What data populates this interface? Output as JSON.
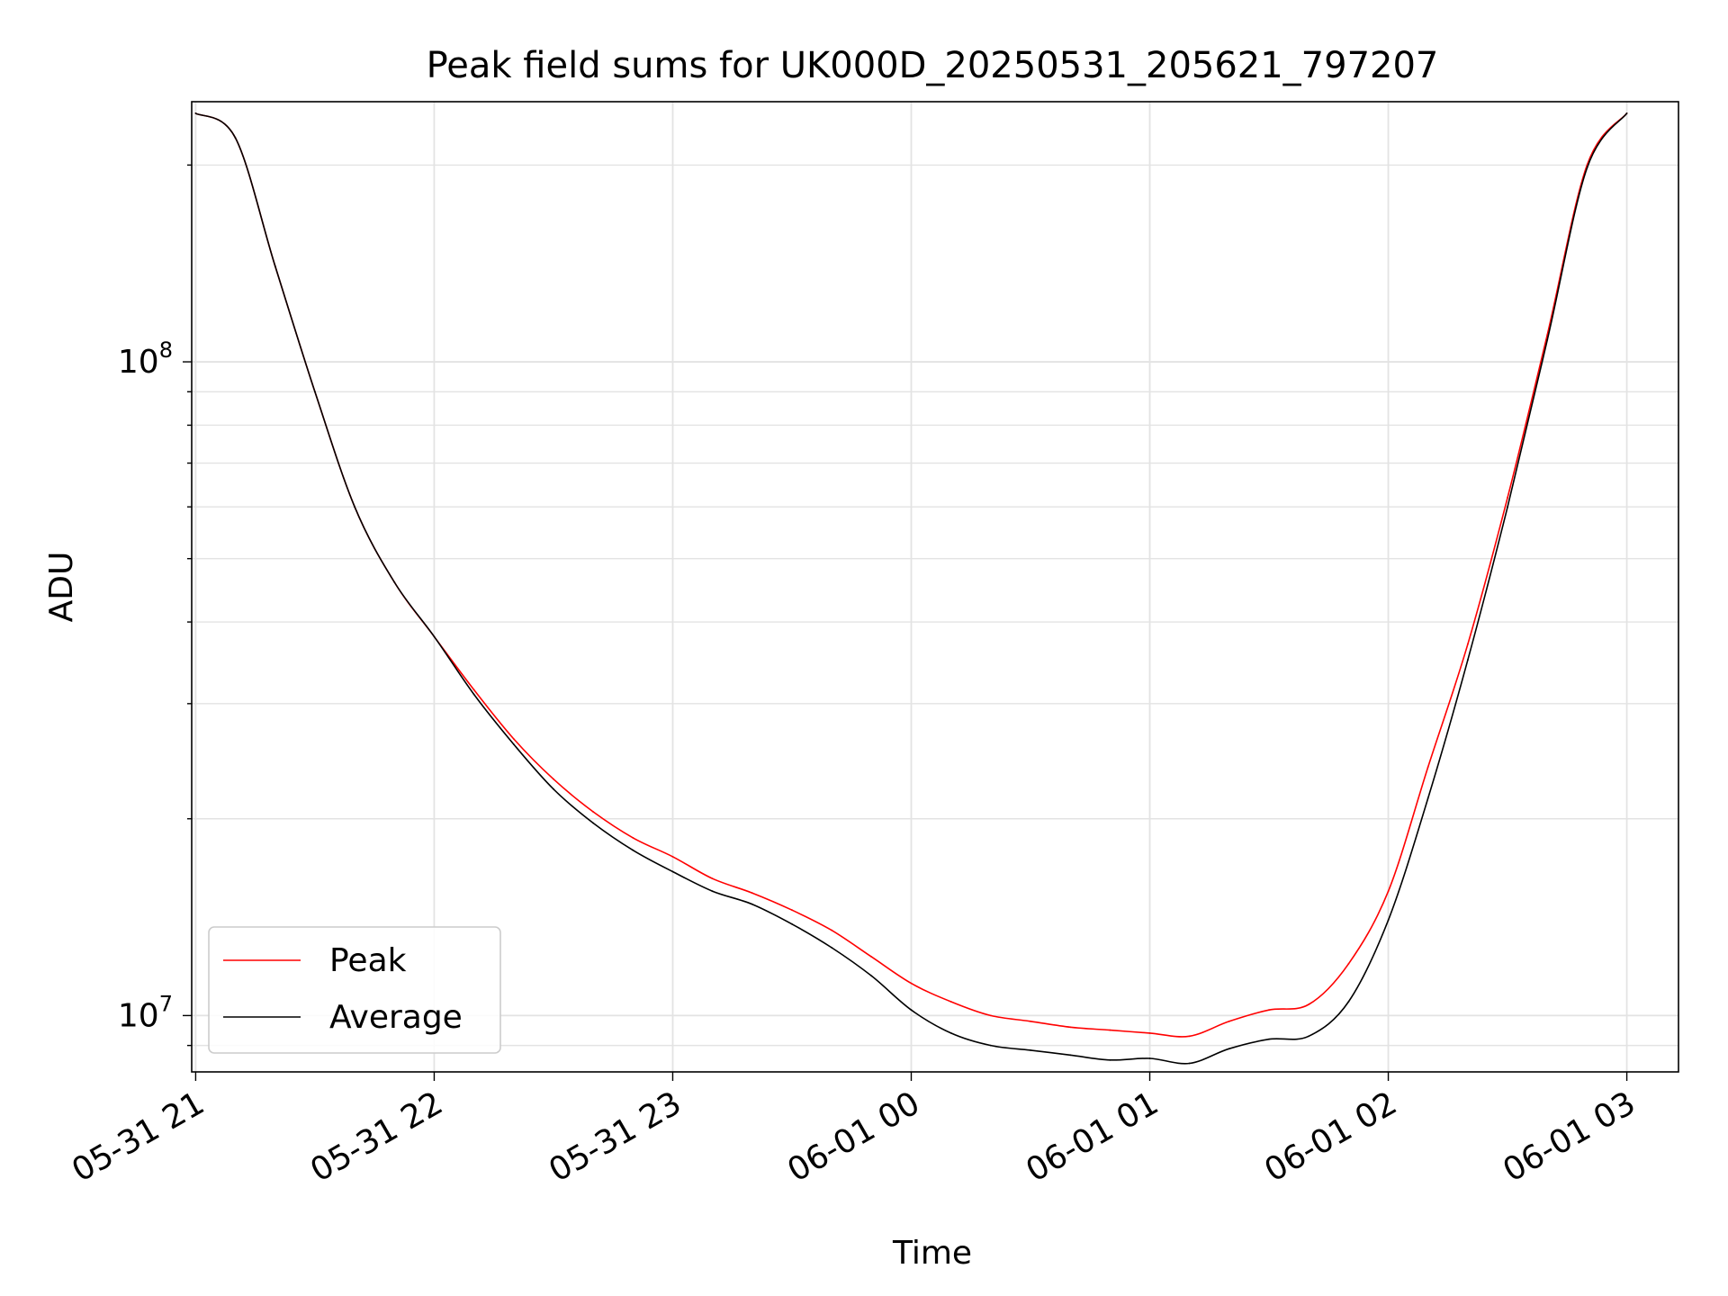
{
  "chart_data": {
    "type": "line",
    "title": "Peak field sums for UK000D_20250531_205621_797207",
    "xlabel": "Time",
    "ylabel": "ADU",
    "yscale": "log",
    "ylim": [
      8200000,
      250000000
    ],
    "xlim": [
      "2025-05-31 20:59",
      "2025-06-01 03:13"
    ],
    "x_ticks": [
      {
        "value": "2025-05-31 21:00",
        "label": "05-31 21"
      },
      {
        "value": "2025-05-31 22:00",
        "label": "05-31 22"
      },
      {
        "value": "2025-05-31 23:00",
        "label": "05-31 23"
      },
      {
        "value": "2025-06-01 00:00",
        "label": "06-01 00"
      },
      {
        "value": "2025-06-01 01:00",
        "label": "06-01 01"
      },
      {
        "value": "2025-06-01 02:00",
        "label": "06-01 02"
      },
      {
        "value": "2025-06-01 03:00",
        "label": "06-01 03"
      }
    ],
    "y_ticks": [
      {
        "value": 10000000,
        "base": "10",
        "exp": "7"
      },
      {
        "value": 100000000,
        "base": "10",
        "exp": "8"
      }
    ],
    "grid": true,
    "legend_position": "lower-left",
    "series": [
      {
        "name": "Peak",
        "color": "#ff0000",
        "x": [
          "2025-05-31 21:00",
          "2025-05-31 21:10",
          "2025-05-31 21:20",
          "2025-05-31 21:30",
          "2025-05-31 21:40",
          "2025-05-31 21:50",
          "2025-05-31 22:00",
          "2025-05-31 22:10",
          "2025-05-31 22:20",
          "2025-05-31 22:30",
          "2025-05-31 22:40",
          "2025-05-31 22:50",
          "2025-05-31 23:00",
          "2025-05-31 23:10",
          "2025-05-31 23:20",
          "2025-05-31 23:30",
          "2025-05-31 23:40",
          "2025-05-31 23:50",
          "2025-06-01 00:00",
          "2025-06-01 00:10",
          "2025-06-01 00:20",
          "2025-06-01 00:30",
          "2025-06-01 00:40",
          "2025-06-01 00:50",
          "2025-06-01 01:00",
          "2025-06-01 01:10",
          "2025-06-01 01:20",
          "2025-06-01 01:30",
          "2025-06-01 01:40",
          "2025-06-01 01:50",
          "2025-06-01 02:00",
          "2025-06-01 02:10",
          "2025-06-01 02:20",
          "2025-06-01 02:30",
          "2025-06-01 02:40",
          "2025-06-01 02:50",
          "2025-06-01 03:00"
        ],
        "values": [
          240000000,
          220000000,
          140000000,
          90000000,
          60000000,
          46000000,
          38000000,
          31500000,
          26500000,
          23000000,
          20500000,
          18700000,
          17500000,
          16200000,
          15400000,
          14500000,
          13500000,
          12300000,
          11200000,
          10500000,
          10000000,
          9800000,
          9600000,
          9500000,
          9400000,
          9300000,
          9800000,
          10200000,
          10400000,
          12000000,
          15500000,
          24000000,
          37000000,
          62000000,
          110000000,
          200000000,
          240000000
        ]
      },
      {
        "name": "Average",
        "color": "#000000",
        "x": [
          "2025-05-31 21:00",
          "2025-05-31 21:10",
          "2025-05-31 21:20",
          "2025-05-31 21:30",
          "2025-05-31 21:40",
          "2025-05-31 21:50",
          "2025-05-31 22:00",
          "2025-05-31 22:10",
          "2025-05-31 22:20",
          "2025-05-31 22:30",
          "2025-05-31 22:40",
          "2025-05-31 22:50",
          "2025-05-31 23:00",
          "2025-05-31 23:10",
          "2025-05-31 23:20",
          "2025-05-31 23:30",
          "2025-05-31 23:40",
          "2025-05-31 23:50",
          "2025-06-01 00:00",
          "2025-06-01 00:10",
          "2025-06-01 00:20",
          "2025-06-01 00:30",
          "2025-06-01 00:40",
          "2025-06-01 00:50",
          "2025-06-01 01:00",
          "2025-06-01 01:10",
          "2025-06-01 01:20",
          "2025-06-01 01:30",
          "2025-06-01 01:40",
          "2025-06-01 01:50",
          "2025-06-01 02:00",
          "2025-06-01 02:10",
          "2025-06-01 02:20",
          "2025-06-01 02:30",
          "2025-06-01 02:40",
          "2025-06-01 02:50",
          "2025-06-01 03:00"
        ],
        "values": [
          240000000,
          220000000,
          140000000,
          90000000,
          60000000,
          46000000,
          38000000,
          31000000,
          26000000,
          22200000,
          19700000,
          17900000,
          16600000,
          15500000,
          14800000,
          13800000,
          12700000,
          11500000,
          10200000,
          9400000,
          9000000,
          8850000,
          8700000,
          8550000,
          8600000,
          8450000,
          8900000,
          9200000,
          9300000,
          10500000,
          14000000,
          21500000,
          35000000,
          60000000,
          108000000,
          198000000,
          240000000
        ]
      }
    ]
  }
}
